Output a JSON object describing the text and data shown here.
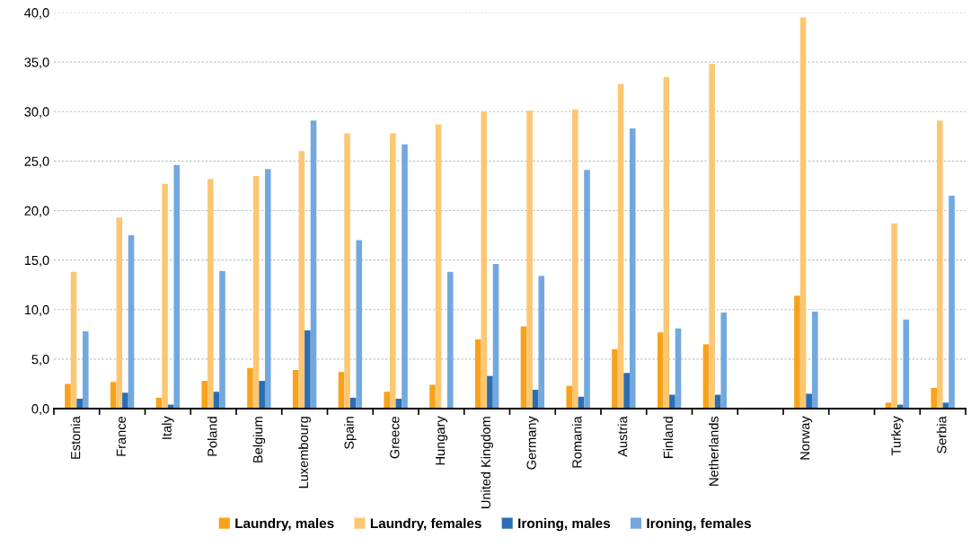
{
  "chart_data": {
    "type": "bar",
    "categories": [
      "Estonia",
      "France",
      "Italy",
      "Poland",
      "Belgium",
      "Luxembourg",
      "Spain",
      "Greece",
      "Hungary",
      "United Kingdom",
      "Germany",
      "Romania",
      "Austria",
      "Finland",
      "Netherlands",
      null,
      "Norway",
      null,
      "Turkey",
      "Serbia"
    ],
    "series": [
      {
        "name": "Laundry, males",
        "color": "#f7a21b",
        "values": [
          2.5,
          2.7,
          1.1,
          2.8,
          4.1,
          3.9,
          3.7,
          1.7,
          2.4,
          7.0,
          8.3,
          2.3,
          6.0,
          7.7,
          6.5,
          null,
          11.4,
          null,
          0.6,
          2.1
        ]
      },
      {
        "name": "Laundry, females",
        "color": "#fcc772",
        "values": [
          13.8,
          19.3,
          22.7,
          23.2,
          23.5,
          26.0,
          27.8,
          27.8,
          28.7,
          30.0,
          30.1,
          30.2,
          32.8,
          33.5,
          34.8,
          null,
          39.5,
          null,
          18.7,
          29.1
        ]
      },
      {
        "name": "Ironing, males",
        "color": "#2a6eb4",
        "values": [
          1.0,
          1.6,
          0.4,
          1.7,
          2.8,
          7.9,
          1.1,
          1.0,
          null,
          3.3,
          1.9,
          1.2,
          3.6,
          1.4,
          1.4,
          null,
          1.5,
          null,
          0.4,
          0.6
        ]
      },
      {
        "name": "Ironing, females",
        "color": "#72a8de",
        "values": [
          7.8,
          17.5,
          24.6,
          13.9,
          24.2,
          29.1,
          17.0,
          26.7,
          13.8,
          14.6,
          13.4,
          24.1,
          28.3,
          8.1,
          9.7,
          null,
          9.8,
          null,
          9.0,
          21.5
        ]
      }
    ],
    "ylim": [
      0,
      40
    ],
    "yticks": [
      {
        "value": 0,
        "label": "0,0"
      },
      {
        "value": 5,
        "label": "5,0"
      },
      {
        "value": 10,
        "label": "10,0"
      },
      {
        "value": 15,
        "label": "15,0"
      },
      {
        "value": 20,
        "label": "20,0"
      },
      {
        "value": 25,
        "label": "25,0"
      },
      {
        "value": 30,
        "label": "30,0"
      },
      {
        "value": 35,
        "label": "35,0"
      },
      {
        "value": 40,
        "label": "40,0"
      }
    ],
    "grid": "y",
    "legend": "bottom"
  }
}
